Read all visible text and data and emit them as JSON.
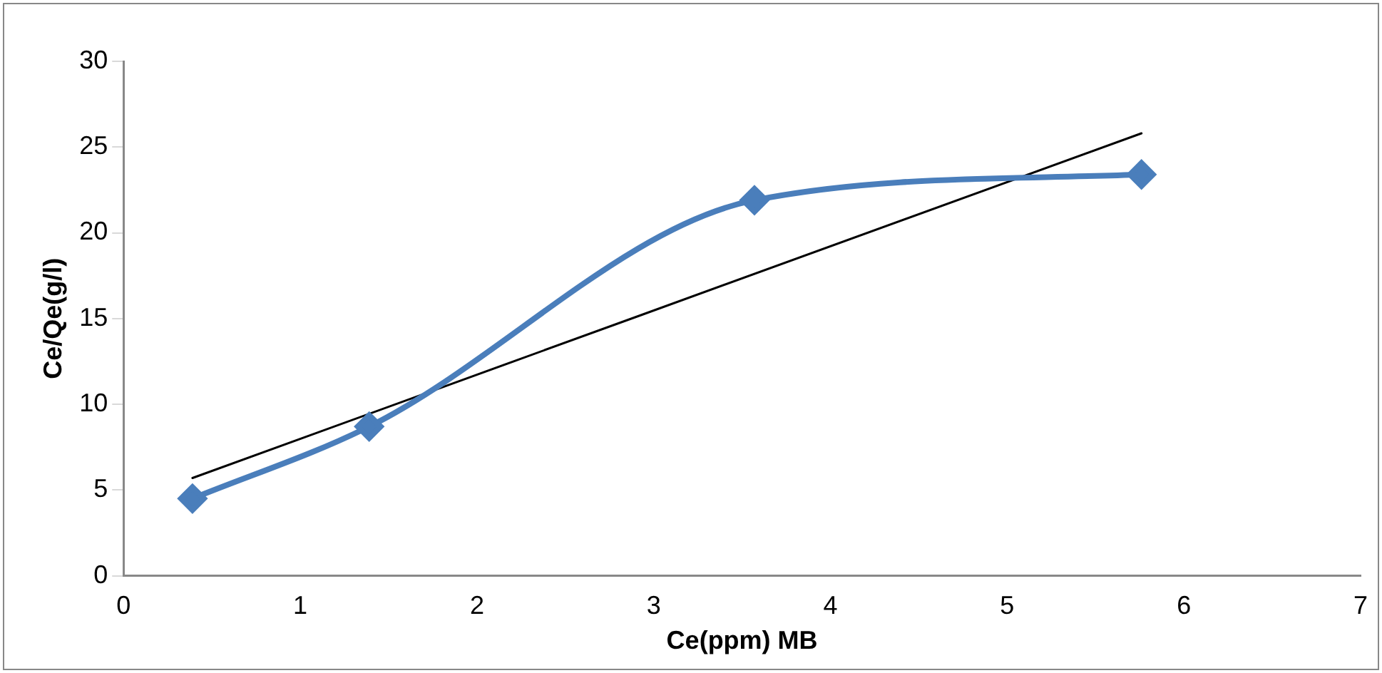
{
  "chart_data": {
    "type": "line",
    "xlabel": "Ce(ppm) MB",
    "ylabel": "Ce/Qe(g/l)",
    "x": [
      0.39,
      1.39,
      3.57,
      5.76
    ],
    "series": [
      {
        "color": "#4a7ebb",
        "values": [
          4.5,
          8.7,
          21.9,
          23.4
        ],
        "marker": "diamond"
      },
      {
        "type": "line",
        "color": "#000000",
        "x": [
          0.39,
          5.76
        ],
        "values": [
          5.7,
          25.8
        ],
        "marker": "none"
      }
    ],
    "xlim": [
      0,
      7
    ],
    "xticks": [
      0,
      1,
      2,
      3,
      4,
      5,
      6,
      7
    ],
    "ylim": [
      0,
      30
    ],
    "yticks": [
      0,
      5,
      10,
      15,
      20,
      25,
      30
    ],
    "grid": false,
    "legend": false
  }
}
